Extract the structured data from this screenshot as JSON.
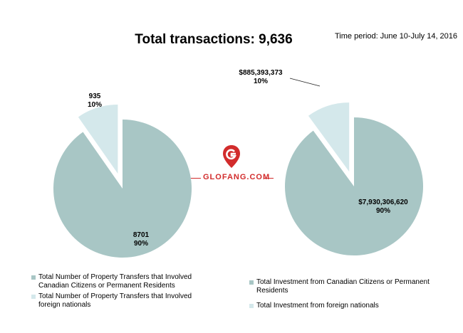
{
  "title": "Total transactions: 9,636",
  "time_period": "Time period: June 10-July 14, 2016",
  "watermark": "GLOFANG.COM",
  "colors": {
    "major": "#a8c6c5",
    "minor": "#d4e8eb",
    "watermark": "#d22c2c"
  },
  "chart_data": [
    {
      "type": "pie",
      "title": "",
      "slices": [
        {
          "label": "Total Number of Property Transfers that Involved Canadian Citizens or Permanent Residents",
          "value": 8701,
          "value_text": "8701",
          "percent_text": "90%",
          "color": "#a8c6c5"
        },
        {
          "label": "Total Number of Property Transfers that Involved foreign nationals",
          "value": 935,
          "value_text": "935",
          "percent_text": "10%",
          "color": "#d4e8eb"
        }
      ],
      "legend_position": "bottom"
    },
    {
      "type": "pie",
      "title": "",
      "slices": [
        {
          "label": "Total Investment from Canadian Citizens or Permanent Residents",
          "value": 7930306620,
          "value_text": "$7,930,306,620",
          "percent_text": "90%",
          "color": "#a8c6c5"
        },
        {
          "label": "Total Investment from foreign nationals",
          "value": 885393373,
          "value_text": "$885,393,373",
          "percent_text": "10%",
          "color": "#d4e8eb"
        }
      ],
      "legend_position": "bottom"
    }
  ]
}
